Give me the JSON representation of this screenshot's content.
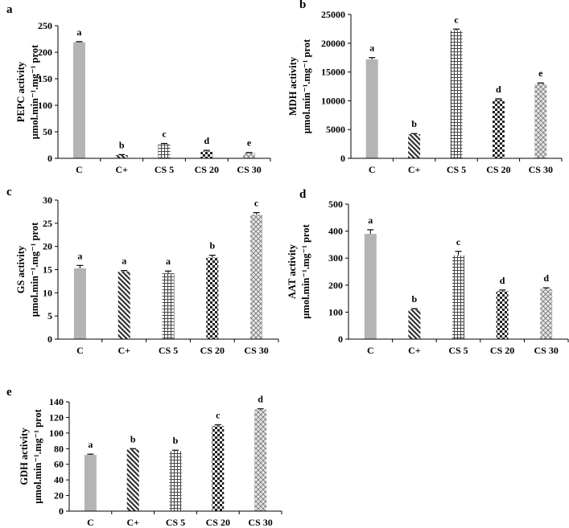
{
  "colors": {
    "light_gray": "#b4b4b4",
    "axis": "#000000",
    "error_bar": "#000000"
  },
  "chart_data": [
    {
      "panel": "a",
      "type": "bar",
      "ylabel_line1": "PEPC activity",
      "ylabel_line2": "µmol.min⁻¹.mg⁻¹ prot",
      "categories": [
        "C",
        "C+",
        "CS 5",
        "CS 20",
        "CS 30"
      ],
      "values": [
        219,
        6,
        27,
        13,
        10
      ],
      "errors": [
        1,
        1,
        1,
        2,
        1
      ],
      "letters": [
        "a",
        "b",
        "c",
        "d",
        "e"
      ],
      "patterns": [
        "solid",
        "diag-back",
        "grid",
        "checker",
        "diamond"
      ],
      "ylim": [
        0,
        250
      ],
      "yticks": [
        0,
        50,
        100,
        150,
        200,
        250
      ]
    },
    {
      "panel": "b",
      "type": "bar",
      "ylabel_line1": "MDH activity",
      "ylabel_line2": "µmol.min⁻¹.mg⁻¹ prot",
      "categories": [
        "C",
        "C+",
        "CS 5",
        "CS 20",
        "CS 30"
      ],
      "values": [
        17200,
        4200,
        22200,
        10200,
        13000
      ],
      "errors": [
        300,
        100,
        250,
        150,
        100
      ],
      "letters": [
        "a",
        "b",
        "c",
        "d",
        "e"
      ],
      "patterns": [
        "solid",
        "diag-back",
        "grid",
        "checker",
        "diamond"
      ],
      "ylim": [
        0,
        25000
      ],
      "yticks": [
        0,
        5000,
        10000,
        15000,
        20000,
        25000
      ]
    },
    {
      "panel": "c",
      "type": "bar",
      "ylabel_line1": "GS activity",
      "ylabel_line2": "µmol.min⁻¹.mg⁻¹ prot",
      "categories": [
        "C",
        "C+",
        "CS 5",
        "CS 20",
        "CS 30"
      ],
      "values": [
        15.3,
        14.6,
        14.2,
        17.6,
        26.9
      ],
      "errors": [
        0.6,
        0.2,
        0.5,
        0.5,
        0.4
      ],
      "letters": [
        "a",
        "a",
        "a",
        "b",
        "c"
      ],
      "patterns": [
        "solid",
        "diag-back",
        "grid",
        "checker",
        "diamond"
      ],
      "ylim": [
        0,
        30
      ],
      "yticks": [
        0,
        5,
        10,
        15,
        20,
        25,
        30
      ]
    },
    {
      "panel": "d",
      "type": "bar",
      "ylabel_line1": "AAT activity",
      "ylabel_line2": "µmol.min⁻¹.mg⁻¹ prot",
      "categories": [
        "C",
        "C+",
        "CS 5",
        "CS 20",
        "CS 30"
      ],
      "values": [
        390,
        110,
        310,
        178,
        186
      ],
      "errors": [
        15,
        3,
        15,
        4,
        4
      ],
      "letters": [
        "a",
        "b",
        "c",
        "d",
        "d"
      ],
      "patterns": [
        "solid",
        "diag-back",
        "grid",
        "checker",
        "diamond"
      ],
      "ylim": [
        0,
        500
      ],
      "yticks": [
        0,
        100,
        200,
        300,
        400,
        500
      ]
    },
    {
      "panel": "e",
      "type": "bar",
      "ylabel_line1": "GDH activity",
      "ylabel_line2": "µmol.min⁻¹.mg⁻¹ prot",
      "categories": [
        "C",
        "C+",
        "CS 5",
        "CS 20",
        "CS 30"
      ],
      "values": [
        72,
        79,
        77,
        109,
        130
      ],
      "errors": [
        1,
        1,
        1,
        1.5,
        1
      ],
      "letters": [
        "a",
        "b",
        "b",
        "c",
        "d"
      ],
      "patterns": [
        "solid",
        "diag-back",
        "grid",
        "checker",
        "diamond"
      ],
      "ylim": [
        0,
        140
      ],
      "yticks": [
        0,
        20,
        40,
        60,
        80,
        100,
        120,
        140
      ]
    }
  ]
}
